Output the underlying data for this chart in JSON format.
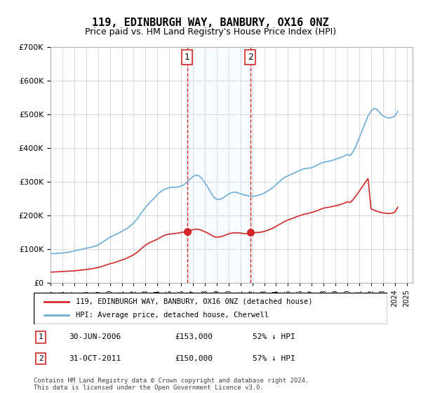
{
  "title": "119, EDINBURGH WAY, BANBURY, OX16 0NZ",
  "subtitle": "Price paid vs. HM Land Registry's House Price Index (HPI)",
  "legend_entry1": "119, EDINBURGH WAY, BANBURY, OX16 0NZ (detached house)",
  "legend_entry2": "HPI: Average price, detached house, Cherwell",
  "annotation1_label": "1",
  "annotation1_date": "30-JUN-2006",
  "annotation1_price": "£153,000",
  "annotation1_hpi": "52% ↓ HPI",
  "annotation1_year": 2006.5,
  "annotation1_value": 153000,
  "annotation2_label": "2",
  "annotation2_date": "31-OCT-2011",
  "annotation2_price": "£150,000",
  "annotation2_hpi": "57% ↓ HPI",
  "annotation2_year": 2011.83,
  "annotation2_value": 150000,
  "footer": "Contains HM Land Registry data © Crown copyright and database right 2024.\nThis data is licensed under the Open Government Licence v3.0.",
  "hpi_color": "#6baed6",
  "price_color": "#d62728",
  "marker_color": "#d62728",
  "shade_color": "#ddeeff",
  "vline_color": "#d62728",
  "ylim": [
    0,
    700000
  ],
  "yticks": [
    0,
    100000,
    200000,
    300000,
    400000,
    500000,
    600000,
    700000
  ],
  "hpi_data": {
    "years": [
      1995.0,
      1995.25,
      1995.5,
      1995.75,
      1996.0,
      1996.25,
      1996.5,
      1996.75,
      1997.0,
      1997.25,
      1997.5,
      1997.75,
      1998.0,
      1998.25,
      1998.5,
      1998.75,
      1999.0,
      1999.25,
      1999.5,
      1999.75,
      2000.0,
      2000.25,
      2000.5,
      2000.75,
      2001.0,
      2001.25,
      2001.5,
      2001.75,
      2002.0,
      2002.25,
      2002.5,
      2002.75,
      2003.0,
      2003.25,
      2003.5,
      2003.75,
      2004.0,
      2004.25,
      2004.5,
      2004.75,
      2005.0,
      2005.25,
      2005.5,
      2005.75,
      2006.0,
      2006.25,
      2006.5,
      2006.75,
      2007.0,
      2007.25,
      2007.5,
      2007.75,
      2008.0,
      2008.25,
      2008.5,
      2008.75,
      2009.0,
      2009.25,
      2009.5,
      2009.75,
      2010.0,
      2010.25,
      2010.5,
      2010.75,
      2011.0,
      2011.25,
      2011.5,
      2011.75,
      2012.0,
      2012.25,
      2012.5,
      2012.75,
      2013.0,
      2013.25,
      2013.5,
      2013.75,
      2014.0,
      2014.25,
      2014.5,
      2014.75,
      2015.0,
      2015.25,
      2015.5,
      2015.75,
      2016.0,
      2016.25,
      2016.5,
      2016.75,
      2017.0,
      2017.25,
      2017.5,
      2017.75,
      2018.0,
      2018.25,
      2018.5,
      2018.75,
      2019.0,
      2019.25,
      2019.5,
      2019.75,
      2020.0,
      2020.25,
      2020.5,
      2020.75,
      2021.0,
      2021.25,
      2021.5,
      2021.75,
      2022.0,
      2022.25,
      2022.5,
      2022.75,
      2023.0,
      2023.25,
      2023.5,
      2023.75,
      2024.0,
      2024.25
    ],
    "values": [
      88000,
      87000,
      87500,
      88000,
      89000,
      90000,
      91000,
      93000,
      95000,
      97000,
      99000,
      101000,
      103000,
      105000,
      107000,
      109000,
      113000,
      118000,
      124000,
      130000,
      136000,
      140000,
      144000,
      148000,
      153000,
      158000,
      163000,
      170000,
      178000,
      188000,
      200000,
      213000,
      224000,
      234000,
      244000,
      252000,
      262000,
      270000,
      276000,
      280000,
      283000,
      284000,
      284000,
      285000,
      288000,
      292000,
      300000,
      308000,
      316000,
      320000,
      318000,
      310000,
      298000,
      284000,
      268000,
      255000,
      248000,
      248000,
      252000,
      258000,
      264000,
      268000,
      270000,
      268000,
      265000,
      262000,
      260000,
      258000,
      257000,
      258000,
      260000,
      263000,
      267000,
      272000,
      278000,
      284000,
      292000,
      300000,
      308000,
      314000,
      318000,
      322000,
      326000,
      330000,
      334000,
      338000,
      340000,
      341000,
      342000,
      346000,
      350000,
      355000,
      358000,
      360000,
      362000,
      364000,
      367000,
      370000,
      373000,
      377000,
      382000,
      378000,
      390000,
      408000,
      430000,
      452000,
      474000,
      496000,
      510000,
      518000,
      515000,
      505000,
      496000,
      492000,
      490000,
      491000,
      495000,
      510000
    ]
  },
  "price_data": {
    "years": [
      1995.0,
      1995.25,
      1995.5,
      1995.75,
      1996.0,
      1996.25,
      1996.5,
      1996.75,
      1997.0,
      1997.25,
      1997.5,
      1997.75,
      1998.0,
      1998.25,
      1998.5,
      1998.75,
      1999.0,
      1999.25,
      1999.5,
      1999.75,
      2000.0,
      2000.25,
      2000.5,
      2000.75,
      2001.0,
      2001.25,
      2001.5,
      2001.75,
      2002.0,
      2002.25,
      2002.5,
      2002.75,
      2003.0,
      2003.25,
      2003.5,
      2003.75,
      2004.0,
      2004.25,
      2004.5,
      2004.75,
      2005.0,
      2005.25,
      2005.5,
      2005.75,
      2006.0,
      2006.25,
      2006.5,
      2006.75,
      2007.0,
      2007.25,
      2007.5,
      2007.75,
      2008.0,
      2008.25,
      2008.5,
      2008.75,
      2009.0,
      2009.25,
      2009.5,
      2009.75,
      2010.0,
      2010.25,
      2010.5,
      2010.75,
      2011.0,
      2011.25,
      2011.5,
      2011.75,
      2012.0,
      2012.25,
      2012.5,
      2012.75,
      2013.0,
      2013.25,
      2013.5,
      2013.75,
      2014.0,
      2014.25,
      2014.5,
      2014.75,
      2015.0,
      2015.25,
      2015.5,
      2015.75,
      2016.0,
      2016.25,
      2016.5,
      2016.75,
      2017.0,
      2017.25,
      2017.5,
      2017.75,
      2018.0,
      2018.25,
      2018.5,
      2018.75,
      2019.0,
      2019.25,
      2019.5,
      2019.75,
      2020.0,
      2020.25,
      2020.5,
      2020.75,
      2021.0,
      2021.25,
      2021.5,
      2021.75,
      2022.0,
      2022.25,
      2022.5,
      2022.75,
      2023.0,
      2023.25,
      2023.5,
      2023.75,
      2024.0,
      2024.25
    ],
    "values": [
      32000,
      32500,
      33000,
      33500,
      34000,
      34500,
      35000,
      35500,
      36000,
      37000,
      38000,
      39000,
      40000,
      41000,
      42500,
      44000,
      46000,
      48000,
      51000,
      54000,
      57000,
      59000,
      62000,
      65000,
      68000,
      71000,
      75000,
      79000,
      84000,
      90000,
      97000,
      105000,
      112000,
      118000,
      122000,
      126000,
      130000,
      135000,
      140000,
      143000,
      145000,
      146000,
      147000,
      148000,
      150000,
      151000,
      153000,
      155000,
      158000,
      160000,
      159000,
      156000,
      152000,
      148000,
      143000,
      138000,
      136000,
      137000,
      139000,
      142000,
      146000,
      148000,
      149000,
      149000,
      148000,
      147000,
      146000,
      147000,
      148000,
      149000,
      150000,
      151000,
      153000,
      156000,
      159000,
      163000,
      168000,
      173000,
      178000,
      183000,
      187000,
      190000,
      193000,
      197000,
      200000,
      203000,
      205000,
      207000,
      209000,
      212000,
      215000,
      219000,
      222000,
      224000,
      225000,
      227000,
      229000,
      231000,
      234000,
      237000,
      241000,
      239000,
      248000,
      260000,
      272000,
      285000,
      298000,
      310000,
      220000,
      216000,
      213000,
      210000,
      208000,
      207000,
      206000,
      207000,
      210000,
      225000
    ]
  }
}
